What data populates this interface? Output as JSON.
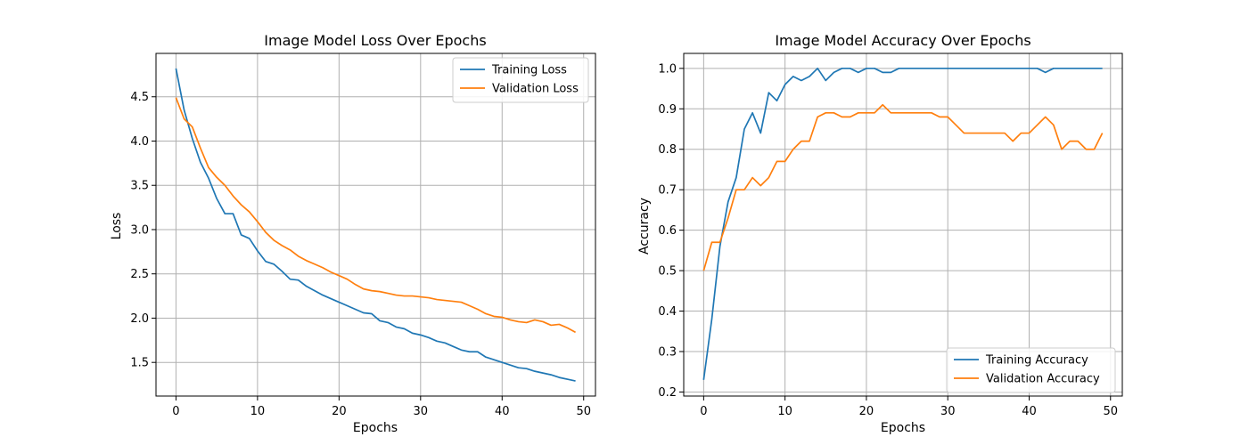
{
  "colors": {
    "series1": "#1f77b4",
    "series2": "#ff7f0e",
    "grid": "#b0b0b0",
    "axis": "#000000"
  },
  "chart_data": [
    {
      "type": "line",
      "title": "Image Model Loss Over Epochs",
      "xlabel": "Epochs",
      "ylabel": "Loss",
      "xlim": [
        -2.45,
        51.45
      ],
      "ylim": [
        1.12,
        4.99
      ],
      "xticks": [
        0,
        10,
        20,
        30,
        40,
        50
      ],
      "yticks": [
        1.5,
        2.0,
        2.5,
        3.0,
        3.5,
        4.0,
        4.5
      ],
      "ytick_labels": [
        "1.5",
        "2.0",
        "2.5",
        "3.0",
        "3.5",
        "4.0",
        "4.5"
      ],
      "grid": true,
      "legend_position": "top-right",
      "x": [
        0,
        1,
        2,
        3,
        4,
        5,
        6,
        7,
        8,
        9,
        10,
        11,
        12,
        13,
        14,
        15,
        16,
        17,
        18,
        19,
        20,
        21,
        22,
        23,
        24,
        25,
        26,
        27,
        28,
        29,
        30,
        31,
        32,
        33,
        34,
        35,
        36,
        37,
        38,
        39,
        40,
        41,
        42,
        43,
        44,
        45,
        46,
        47,
        48,
        49
      ],
      "series": [
        {
          "name": "Training Loss",
          "values": [
            4.82,
            4.35,
            4.03,
            3.76,
            3.58,
            3.35,
            3.18,
            3.18,
            2.94,
            2.9,
            2.76,
            2.64,
            2.61,
            2.53,
            2.44,
            2.43,
            2.36,
            2.31,
            2.26,
            2.22,
            2.18,
            2.14,
            2.1,
            2.06,
            2.05,
            1.97,
            1.95,
            1.9,
            1.88,
            1.83,
            1.81,
            1.78,
            1.74,
            1.72,
            1.68,
            1.64,
            1.62,
            1.62,
            1.56,
            1.53,
            1.5,
            1.47,
            1.44,
            1.43,
            1.4,
            1.38,
            1.36,
            1.33,
            1.31,
            1.29
          ]
        },
        {
          "name": "Validation Loss",
          "values": [
            4.49,
            4.25,
            4.16,
            3.92,
            3.7,
            3.59,
            3.5,
            3.38,
            3.28,
            3.2,
            3.09,
            2.97,
            2.88,
            2.82,
            2.77,
            2.7,
            2.65,
            2.61,
            2.57,
            2.52,
            2.48,
            2.44,
            2.38,
            2.33,
            2.31,
            2.3,
            2.28,
            2.26,
            2.25,
            2.25,
            2.24,
            2.23,
            2.21,
            2.2,
            2.19,
            2.18,
            2.14,
            2.1,
            2.05,
            2.02,
            2.01,
            1.98,
            1.96,
            1.95,
            1.98,
            1.96,
            1.92,
            1.93,
            1.89,
            1.84
          ]
        }
      ]
    },
    {
      "type": "line",
      "title": "Image Model Accuracy Over Epochs",
      "xlabel": "Epochs",
      "ylabel": "Accuracy",
      "xlim": [
        -2.45,
        51.45
      ],
      "ylim": [
        0.19,
        1.037
      ],
      "xticks": [
        0,
        10,
        20,
        30,
        40,
        50
      ],
      "yticks": [
        0.2,
        0.3,
        0.4,
        0.5,
        0.6,
        0.7,
        0.8,
        0.9,
        1.0
      ],
      "ytick_labels": [
        "0.2",
        "0.3",
        "0.4",
        "0.5",
        "0.6",
        "0.7",
        "0.8",
        "0.9",
        "1.0"
      ],
      "grid": true,
      "legend_position": "bottom-right",
      "x": [
        0,
        1,
        2,
        3,
        4,
        5,
        6,
        7,
        8,
        9,
        10,
        11,
        12,
        13,
        14,
        15,
        16,
        17,
        18,
        19,
        20,
        21,
        22,
        23,
        24,
        25,
        26,
        27,
        28,
        29,
        30,
        31,
        32,
        33,
        34,
        35,
        36,
        37,
        38,
        39,
        40,
        41,
        42,
        43,
        44,
        45,
        46,
        47,
        48,
        49
      ],
      "series": [
        {
          "name": "Training Accuracy",
          "values": [
            0.23,
            0.38,
            0.56,
            0.67,
            0.73,
            0.85,
            0.89,
            0.84,
            0.94,
            0.92,
            0.96,
            0.98,
            0.97,
            0.98,
            1.0,
            0.97,
            0.99,
            1.0,
            1.0,
            0.99,
            1.0,
            1.0,
            0.99,
            0.99,
            1.0,
            1.0,
            1.0,
            1.0,
            1.0,
            1.0,
            1.0,
            1.0,
            1.0,
            1.0,
            1.0,
            1.0,
            1.0,
            1.0,
            1.0,
            1.0,
            1.0,
            1.0,
            0.99,
            1.0,
            1.0,
            1.0,
            1.0,
            1.0,
            1.0,
            1.0
          ]
        },
        {
          "name": "Validation Accuracy",
          "values": [
            0.5,
            0.57,
            0.57,
            0.63,
            0.7,
            0.7,
            0.73,
            0.71,
            0.73,
            0.77,
            0.77,
            0.8,
            0.82,
            0.82,
            0.88,
            0.89,
            0.89,
            0.88,
            0.88,
            0.89,
            0.89,
            0.89,
            0.91,
            0.89,
            0.89,
            0.89,
            0.89,
            0.89,
            0.89,
            0.88,
            0.88,
            0.86,
            0.84,
            0.84,
            0.84,
            0.84,
            0.84,
            0.84,
            0.82,
            0.84,
            0.84,
            0.86,
            0.88,
            0.86,
            0.8,
            0.82,
            0.82,
            0.8,
            0.8,
            0.84
          ]
        }
      ]
    }
  ]
}
